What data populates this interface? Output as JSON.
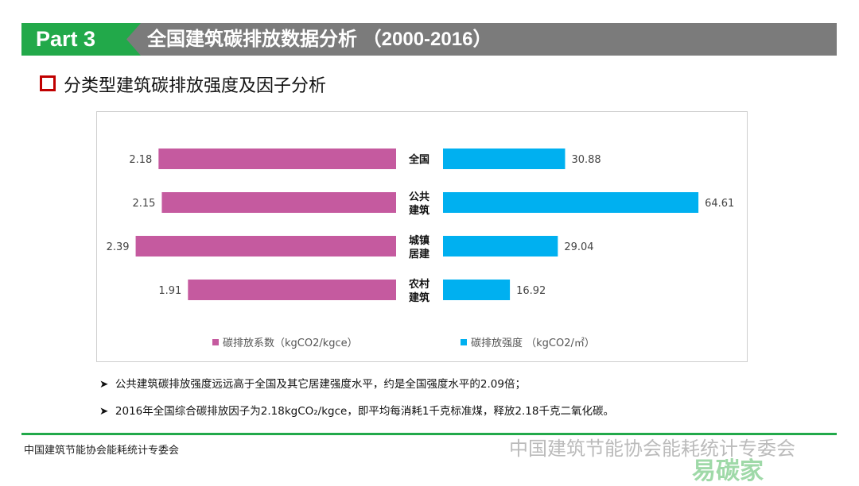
{
  "header": {
    "part": "Part 3",
    "title": "全国建筑碳排放数据分析 （2000-2016）"
  },
  "subtitle": "分类型建筑碳排放强度及因子分析",
  "chart_data": {
    "type": "bar",
    "orientation": "horizontal-butterfly",
    "categories": [
      "全国",
      "公共建筑",
      "城镇居建",
      "农村建筑"
    ],
    "series": [
      {
        "name": "碳排放系数（kgCO2/kgce）",
        "values": [
          2.18,
          2.15,
          2.39,
          1.91
        ],
        "color": "#c55a9f"
      },
      {
        "name": "碳排放强度 （kgCO2/㎡）",
        "values": [
          30.88,
          64.61,
          29.04,
          16.92
        ],
        "color": "#00b0f0"
      }
    ],
    "value_labels": {
      "left": [
        "2.18",
        "2.15",
        "2.39",
        "1.91"
      ],
      "right": [
        "30.88",
        "64.61",
        "29.04",
        "16.92"
      ]
    },
    "legend_placement": "bottom",
    "grid": false
  },
  "bullets": [
    "公共建筑碳排放强度远远高于全国及其它居建强度水平，约是全国强度水平的2.09倍；",
    "2016年全国综合碳排放因子为2.18kgCO₂/kgce，即平均每消耗1千克标准煤，释放2.18千克二氧化碳。"
  ],
  "footer": "中国建筑节能协会能耗统计专委会",
  "watermark": "中国建筑节能协会能耗统计专委会",
  "watermark2": "易碳家"
}
